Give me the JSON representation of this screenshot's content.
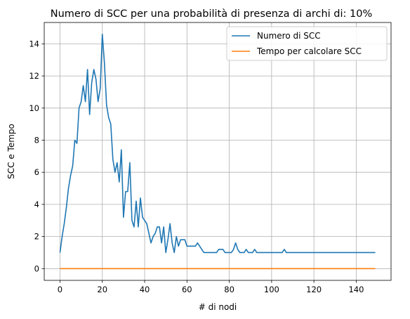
{
  "chart_data": {
    "type": "line",
    "title": "Numero di SCC per una probabilità di presenza di archi di: 10%",
    "xlabel": "#  di nodi",
    "ylabel": "SCC e Tempo",
    "xlim": [
      -7.45,
      156.45
    ],
    "ylim": [
      -0.73,
      15.33
    ],
    "xticks": [
      0,
      20,
      40,
      60,
      80,
      100,
      120,
      140
    ],
    "yticks": [
      0,
      2,
      4,
      6,
      8,
      10,
      12,
      14
    ],
    "grid": true,
    "legend_position": "top-right",
    "x": [
      0,
      1,
      2,
      3,
      4,
      5,
      6,
      7,
      8,
      9,
      10,
      11,
      12,
      13,
      14,
      15,
      16,
      17,
      18,
      19,
      20,
      21,
      22,
      23,
      24,
      25,
      26,
      27,
      28,
      29,
      30,
      31,
      32,
      33,
      34,
      35,
      36,
      37,
      38,
      39,
      40,
      41,
      42,
      43,
      44,
      45,
      46,
      47,
      48,
      49,
      50,
      51,
      52,
      53,
      54,
      55,
      56,
      57,
      58,
      59,
      60,
      61,
      62,
      63,
      64,
      65,
      66,
      67,
      68,
      69,
      70,
      71,
      72,
      73,
      74,
      75,
      76,
      77,
      78,
      79,
      80,
      81,
      82,
      83,
      84,
      85,
      86,
      87,
      88,
      89,
      90,
      91,
      92,
      93,
      94,
      95,
      96,
      97,
      98,
      99,
      100,
      101,
      102,
      103,
      104,
      105,
      106,
      107,
      108,
      109,
      110,
      111,
      112,
      113,
      114,
      115,
      116,
      117,
      118,
      119,
      120,
      121,
      122,
      123,
      124,
      125,
      126,
      127,
      128,
      129,
      130,
      131,
      132,
      133,
      134,
      135,
      136,
      137,
      138,
      139,
      140,
      141,
      142,
      143,
      144,
      145,
      146,
      147,
      148,
      149
    ],
    "series": [
      {
        "name": "Numero di SCC",
        "color": "#1f77b4",
        "values": [
          1.0,
          2.0,
          2.8,
          3.8,
          5.0,
          5.8,
          6.4,
          8.0,
          7.8,
          10.0,
          10.4,
          11.4,
          10.4,
          12.4,
          9.6,
          11.6,
          12.4,
          11.8,
          10.4,
          11.2,
          14.6,
          12.8,
          10.2,
          9.4,
          9.0,
          6.8,
          6.0,
          6.6,
          5.4,
          7.4,
          3.2,
          4.8,
          4.8,
          6.6,
          3.0,
          2.6,
          4.2,
          2.6,
          4.4,
          3.2,
          3.0,
          2.8,
          2.2,
          1.6,
          2.0,
          2.2,
          2.6,
          2.6,
          1.6,
          2.6,
          1.0,
          1.8,
          2.8,
          1.6,
          1.0,
          2.0,
          1.4,
          1.8,
          1.8,
          1.8,
          1.4,
          1.4,
          1.4,
          1.4,
          1.4,
          1.6,
          1.4,
          1.2,
          1.0,
          1.0,
          1.0,
          1.0,
          1.0,
          1.0,
          1.0,
          1.2,
          1.2,
          1.2,
          1.0,
          1.0,
          1.0,
          1.0,
          1.2,
          1.6,
          1.2,
          1.0,
          1.0,
          1.0,
          1.2,
          1.0,
          1.0,
          1.0,
          1.2,
          1.0,
          1.0,
          1.0,
          1.0,
          1.0,
          1.0,
          1.0,
          1.0,
          1.0,
          1.0,
          1.0,
          1.0,
          1.0,
          1.2,
          1.0,
          1.0,
          1.0,
          1.0,
          1.0,
          1.0,
          1.0,
          1.0,
          1.0,
          1.0,
          1.0,
          1.0,
          1.0,
          1.0,
          1.0,
          1.0,
          1.0,
          1.0,
          1.0,
          1.0,
          1.0,
          1.0,
          1.0,
          1.0,
          1.0,
          1.0,
          1.0,
          1.0,
          1.0,
          1.0,
          1.0,
          1.0,
          1.0,
          1.0,
          1.0,
          1.0,
          1.0,
          1.0,
          1.0,
          1.0,
          1.0,
          1.0,
          1.0
        ]
      },
      {
        "name": "Tempo per calcolare SCC",
        "color": "#ff7f0e",
        "values": [
          0.0,
          0.0,
          0.0,
          0.0,
          0.0,
          0.0,
          0.0,
          0.0,
          0.0,
          0.0,
          0.0,
          0.0,
          0.0,
          0.0,
          0.0,
          0.0,
          0.0,
          0.0,
          0.0,
          0.0,
          0.0,
          0.0,
          0.0,
          0.0,
          0.0,
          0.0,
          0.0,
          0.0,
          0.0,
          0.0,
          0.0,
          0.0,
          0.0,
          0.0,
          0.0,
          0.0,
          0.0,
          0.0,
          0.0,
          0.0,
          0.0,
          0.0,
          0.0,
          0.0,
          0.0,
          0.0,
          0.0,
          0.0,
          0.0,
          0.0,
          0.0,
          0.0,
          0.0,
          0.0,
          0.0,
          0.0,
          0.0,
          0.0,
          0.0,
          0.0,
          0.0,
          0.0,
          0.0,
          0.0,
          0.0,
          0.0,
          0.0,
          0.0,
          0.0,
          0.0,
          0.0,
          0.0,
          0.0,
          0.0,
          0.0,
          0.0,
          0.0,
          0.0,
          0.0,
          0.0,
          0.0,
          0.0,
          0.0,
          0.0,
          0.0,
          0.0,
          0.0,
          0.0,
          0.0,
          0.0,
          0.0,
          0.0,
          0.0,
          0.0,
          0.0,
          0.0,
          0.0,
          0.0,
          0.0,
          0.0,
          0.0,
          0.0,
          0.0,
          0.0,
          0.0,
          0.0,
          0.0,
          0.0,
          0.0,
          0.0,
          0.0,
          0.0,
          0.0,
          0.0,
          0.0,
          0.0,
          0.0,
          0.0,
          0.0,
          0.0,
          0.0,
          0.0,
          0.0,
          0.0,
          0.0,
          0.0,
          0.0,
          0.0,
          0.0,
          0.0,
          0.0,
          0.0,
          0.0,
          0.0,
          0.0,
          0.0,
          0.0,
          0.0,
          0.0,
          0.0,
          0.0,
          0.0,
          0.0,
          0.0,
          0.0,
          0.0,
          0.0,
          0.0,
          0.0,
          0.0
        ]
      }
    ]
  }
}
